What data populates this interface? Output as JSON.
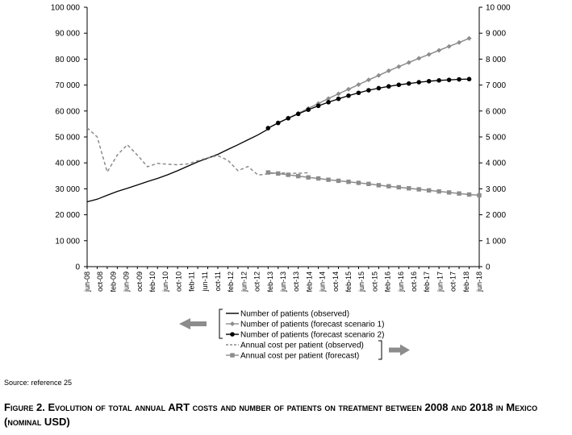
{
  "chart_data": {
    "type": "line",
    "title": "",
    "categories": [
      "jun-08",
      "oct-08",
      "feb-09",
      "jun-09",
      "oct-09",
      "feb-10",
      "jun-10",
      "oct-10",
      "feb-11",
      "jun-11",
      "oct-11",
      "feb-12",
      "jun-12",
      "oct-12",
      "feb-13",
      "jun-13",
      "oct-13",
      "feb-14",
      "jun-14",
      "oct-14",
      "feb-15",
      "jun-15",
      "oct-15",
      "feb-16",
      "jun-16",
      "oct-16",
      "feb-17",
      "jun-17",
      "oct-17",
      "feb-18",
      "jun-18"
    ],
    "left_axis": {
      "ylim": [
        0,
        100000
      ],
      "ticks": [
        0,
        10000,
        20000,
        30000,
        40000,
        50000,
        60000,
        70000,
        80000,
        90000,
        100000
      ],
      "tick_labels": [
        "0",
        "10 000",
        "20 000",
        "30 000",
        "40 000",
        "50 000",
        "60 000",
        "70 000",
        "80 000",
        "90 000",
        "100 000"
      ]
    },
    "right_axis": {
      "ylim": [
        0,
        10000
      ],
      "ticks": [
        0,
        1000,
        2000,
        3000,
        4000,
        5000,
        6000,
        7000,
        8000,
        9000,
        10000
      ],
      "tick_labels": [
        "0",
        "1 000",
        "2 000",
        "3 000",
        "4 000",
        "5 000",
        "6 000",
        "7 000",
        "8 000",
        "9 000",
        "10 000"
      ]
    },
    "series": [
      {
        "name": "Number of patients (observed)",
        "axis": "right",
        "style": "solid-black",
        "points": [
          [
            0,
            2500
          ],
          [
            1,
            2600
          ],
          [
            2,
            2750
          ],
          [
            3,
            2900
          ],
          [
            4,
            3020
          ],
          [
            5,
            3150
          ],
          [
            6,
            3280
          ],
          [
            7,
            3400
          ],
          [
            8,
            3540
          ],
          [
            9,
            3700
          ],
          [
            10,
            3870
          ],
          [
            11,
            4040
          ],
          [
            12,
            4180
          ],
          [
            13,
            4330
          ],
          [
            14,
            4520
          ],
          [
            15,
            4700
          ],
          [
            16,
            4890
          ],
          [
            17,
            5080
          ],
          [
            18,
            5300
          ]
        ]
      },
      {
        "name": "Number of patients (forecast scenario 1)",
        "axis": "right",
        "style": "grey-diamond",
        "points": [
          [
            18,
            5340
          ],
          [
            19,
            5540
          ],
          [
            20,
            5730
          ],
          [
            21,
            5910
          ],
          [
            22,
            6100
          ],
          [
            23,
            6290
          ],
          [
            24,
            6480
          ],
          [
            25,
            6660
          ],
          [
            26,
            6840
          ],
          [
            27,
            7020
          ],
          [
            28,
            7200
          ],
          [
            29,
            7370
          ],
          [
            30,
            7550
          ],
          [
            31,
            7710
          ],
          [
            32,
            7870
          ],
          [
            33,
            8030
          ],
          [
            34,
            8180
          ],
          [
            35,
            8340
          ],
          [
            36,
            8490
          ],
          [
            37,
            8640
          ],
          [
            38,
            8800
          ]
        ]
      },
      {
        "name": "Number of patients (forecast scenario 2)",
        "axis": "right",
        "style": "black-circle",
        "points": [
          [
            18,
            5340
          ],
          [
            19,
            5540
          ],
          [
            20,
            5720
          ],
          [
            21,
            5890
          ],
          [
            22,
            6050
          ],
          [
            23,
            6200
          ],
          [
            24,
            6340
          ],
          [
            25,
            6470
          ],
          [
            26,
            6590
          ],
          [
            27,
            6700
          ],
          [
            28,
            6800
          ],
          [
            29,
            6880
          ],
          [
            30,
            6950
          ],
          [
            31,
            7010
          ],
          [
            32,
            7060
          ],
          [
            33,
            7110
          ],
          [
            34,
            7150
          ],
          [
            35,
            7180
          ],
          [
            36,
            7200
          ],
          [
            37,
            7220
          ],
          [
            38,
            7230
          ]
        ]
      },
      {
        "name": "Annual cost per patient (observed)",
        "axis": "left",
        "style": "dashed-grey",
        "points": [
          [
            0,
            53500
          ],
          [
            1,
            50000
          ],
          [
            2,
            36500
          ],
          [
            3,
            43000
          ],
          [
            4,
            47000
          ],
          [
            5,
            43000
          ],
          [
            6,
            38500
          ],
          [
            7,
            39800
          ],
          [
            8,
            39500
          ],
          [
            9,
            39300
          ],
          [
            10,
            39600
          ],
          [
            11,
            40800
          ],
          [
            12,
            42000
          ],
          [
            13,
            42800
          ],
          [
            14,
            41000
          ],
          [
            15,
            37000
          ],
          [
            16,
            38600
          ],
          [
            17,
            35300
          ],
          [
            18,
            35800
          ],
          [
            19,
            36200
          ],
          [
            20,
            36000
          ],
          [
            21,
            36000
          ],
          [
            22,
            36200
          ]
        ]
      },
      {
        "name": "Annual cost per patient (forecast)",
        "axis": "left",
        "style": "grey-square",
        "points": [
          [
            18,
            36300
          ],
          [
            19,
            35900
          ],
          [
            20,
            35400
          ],
          [
            21,
            34900
          ],
          [
            22,
            34400
          ],
          [
            23,
            34000
          ],
          [
            24,
            33500
          ],
          [
            25,
            33100
          ],
          [
            26,
            32700
          ],
          [
            27,
            32300
          ],
          [
            28,
            31900
          ],
          [
            29,
            31400
          ],
          [
            30,
            31000
          ],
          [
            31,
            30600
          ],
          [
            32,
            30200
          ],
          [
            33,
            29800
          ],
          [
            34,
            29400
          ],
          [
            35,
            29000
          ],
          [
            36,
            28600
          ],
          [
            37,
            28200
          ],
          [
            38,
            27800
          ],
          [
            39,
            27500
          ]
        ]
      }
    ],
    "legend": [
      "Number of patients (observed)",
      "Number of patients (forecast scenario 1)",
      "Number of patients (forecast scenario 2)",
      "Annual cost per patient (observed)",
      "Annual cost per patient (forecast)"
    ],
    "legend_position": "bottom-center"
  },
  "source": "Source: reference 25",
  "caption": "Figure 2. Evolution of total annual ART costs and number of patients on treatment between 2008 and 2018 in Mexico (nominal USD)",
  "colors": {
    "black": "#000000",
    "grey": "#8c8c8c",
    "arrow": "#8c8c8c"
  }
}
